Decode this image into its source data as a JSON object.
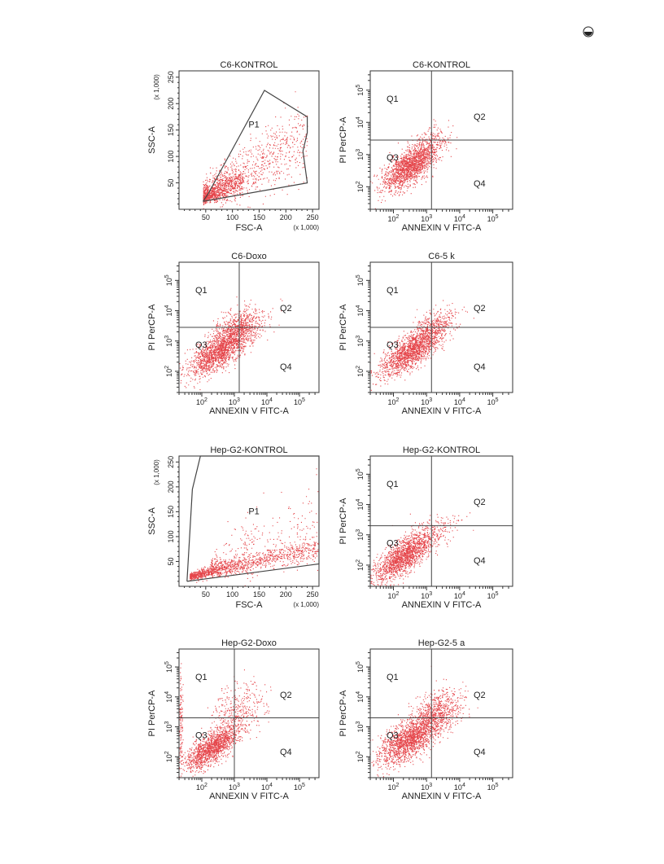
{
  "page": {
    "corner_icon": "circle-half-icon"
  },
  "colors": {
    "events": "#e0262b",
    "gate": "#444444",
    "axis": "#333333",
    "text": "#222222"
  },
  "chart_data": [
    {
      "type": "scatter",
      "kind": "gate",
      "title": "C6-KONTROL",
      "xlabel": "FSC-A",
      "ylabel": "SSC-A",
      "xscale": "linear",
      "yscale": "linear",
      "xlim": [
        0,
        262
      ],
      "ylim": [
        0,
        262
      ],
      "xticks": [
        50,
        100,
        150,
        200,
        250
      ],
      "yticks": [
        50,
        100,
        150,
        200,
        250
      ],
      "xunit": "(x 1,000)",
      "yunit": "(x 1,000)",
      "gate_label": "P1",
      "gate_label_at": [
        130,
        155
      ],
      "gate_polygon": [
        [
          45,
          15
        ],
        [
          55,
          30
        ],
        [
          160,
          225
        ],
        [
          240,
          175
        ],
        [
          240,
          145
        ],
        [
          232,
          110
        ],
        [
          240,
          50
        ],
        [
          45,
          15
        ]
      ],
      "clusters": [
        {
          "n": 900,
          "x": [
            45,
            240
          ],
          "y_from_x": [
            0.55,
            5
          ],
          "ysd": 28
        },
        {
          "n": 700,
          "x": [
            45,
            120
          ],
          "y_from_x": [
            0.45,
            0
          ],
          "ysd": 10
        }
      ]
    },
    {
      "type": "scatter",
      "kind": "quadrant",
      "title": "C6-KONTROL",
      "xlabel": "ANNEXIN V FITC-A",
      "ylabel": "PI PerCP-A",
      "xscale": "log",
      "yscale": "log",
      "xlim": [
        1.3,
        5.6
      ],
      "ylim": [
        1.3,
        5.6
      ],
      "decades": [
        2,
        3,
        4,
        5
      ],
      "quadrant_cut": [
        3.15,
        3.45
      ],
      "quadrants": [
        "Q1",
        "Q2",
        "Q3",
        "Q4"
      ],
      "clusters": [
        {
          "n": 1700,
          "cx": 2.5,
          "cy": 2.65,
          "major": 0.5,
          "minor": 0.22,
          "angle": 40
        },
        {
          "n": 120,
          "cx": 3.1,
          "cy": 3.5,
          "major": 0.35,
          "minor": 0.2,
          "angle": 40
        }
      ]
    },
    {
      "type": "scatter",
      "kind": "quadrant",
      "title": "C6-Doxo",
      "xlabel": "ANNEXIN V FITC-A",
      "ylabel": "PI PerCP-A",
      "xscale": "log",
      "yscale": "log",
      "xlim": [
        1.3,
        5.6
      ],
      "ylim": [
        1.3,
        5.6
      ],
      "decades": [
        2,
        3,
        4,
        5
      ],
      "quadrant_cut": [
        3.15,
        3.45
      ],
      "quadrants": [
        "Q1",
        "Q2",
        "Q3",
        "Q4"
      ],
      "clusters": [
        {
          "n": 1500,
          "cx": 2.5,
          "cy": 2.65,
          "major": 0.55,
          "minor": 0.22,
          "angle": 40
        },
        {
          "n": 700,
          "cx": 3.15,
          "cy": 3.4,
          "major": 0.45,
          "minor": 0.28,
          "angle": 35
        }
      ]
    },
    {
      "type": "scatter",
      "kind": "quadrant",
      "title": "C6-5 k",
      "xlabel": "ANNEXIN V FITC-A",
      "ylabel": "PI PerCP-A",
      "xscale": "log",
      "yscale": "log",
      "xlim": [
        1.3,
        5.6
      ],
      "ylim": [
        1.3,
        5.6
      ],
      "decades": [
        2,
        3,
        4,
        5
      ],
      "quadrant_cut": [
        3.15,
        3.45
      ],
      "quadrants": [
        "Q1",
        "Q2",
        "Q3",
        "Q4"
      ],
      "clusters": [
        {
          "n": 1500,
          "cx": 2.5,
          "cy": 2.65,
          "major": 0.55,
          "minor": 0.22,
          "angle": 40
        },
        {
          "n": 400,
          "cx": 3.2,
          "cy": 3.45,
          "major": 0.4,
          "minor": 0.25,
          "angle": 40
        }
      ]
    },
    {
      "type": "scatter",
      "kind": "gate",
      "title": "Hep-G2-KONTROL",
      "xlabel": "FSC-A",
      "ylabel": "SSC-A",
      "xscale": "linear",
      "yscale": "linear",
      "xlim": [
        0,
        262
      ],
      "ylim": [
        0,
        262
      ],
      "xticks": [
        50,
        100,
        150,
        200,
        250
      ],
      "yticks": [
        50,
        100,
        150,
        200,
        250
      ],
      "xunit": "(x 1,000)",
      "yunit": "(x 1,000)",
      "gate_label": "P1",
      "gate_label_at": [
        130,
        145
      ],
      "gate_polygon": [
        [
          15,
          10
        ],
        [
          25,
          195
        ],
        [
          40,
          262
        ],
        [
          262,
          262
        ],
        [
          262,
          45
        ],
        [
          15,
          10
        ]
      ],
      "clusters": [
        {
          "n": 1300,
          "x": [
            20,
            262
          ],
          "y_from_x": [
            0.25,
            15
          ],
          "ysd": 10
        },
        {
          "n": 250,
          "x": [
            60,
            262
          ],
          "y_from_x": [
            0.45,
            20
          ],
          "ysd": 35
        }
      ]
    },
    {
      "type": "scatter",
      "kind": "quadrant",
      "title": "Hep-G2-KONTROL",
      "xlabel": "ANNEXIN V FITC-A",
      "ylabel": "PI PerCP-A",
      "xscale": "log",
      "yscale": "log",
      "xlim": [
        1.3,
        5.6
      ],
      "ylim": [
        1.3,
        5.6
      ],
      "decades": [
        2,
        3,
        4,
        5
      ],
      "quadrant_cut": [
        3.15,
        3.3
      ],
      "quadrants": [
        "Q1",
        "Q2",
        "Q3",
        "Q4"
      ],
      "clusters": [
        {
          "n": 1600,
          "cx": 2.3,
          "cy": 2.3,
          "major": 0.55,
          "minor": 0.22,
          "angle": 40
        },
        {
          "n": 150,
          "cx": 3.2,
          "cy": 3.1,
          "major": 0.45,
          "minor": 0.25,
          "angle": 35
        }
      ]
    },
    {
      "type": "scatter",
      "kind": "quadrant",
      "title": "Hep-G2-Doxo",
      "xlabel": "ANNEXIN V FITC-A",
      "ylabel": "PI PerCP-A",
      "xscale": "log",
      "yscale": "log",
      "xlim": [
        1.3,
        5.6
      ],
      "ylim": [
        1.3,
        5.6
      ],
      "decades": [
        2,
        3,
        4,
        5
      ],
      "quadrant_cut": [
        3.0,
        3.3
      ],
      "quadrants": [
        "Q1",
        "Q2",
        "Q3",
        "Q4"
      ],
      "clusters": [
        {
          "n": 1400,
          "cx": 2.3,
          "cy": 2.3,
          "major": 0.5,
          "minor": 0.2,
          "angle": 40
        },
        {
          "n": 350,
          "cx": 3.1,
          "cy": 3.6,
          "major": 0.5,
          "minor": 0.35,
          "angle": 60
        },
        {
          "n": 120,
          "cx": 1.35,
          "cy": 3.0,
          "major": 0.9,
          "minor": 0.03,
          "angle": 90
        }
      ]
    },
    {
      "type": "scatter",
      "kind": "quadrant",
      "title": "Hep-G2-5 a",
      "xlabel": "ANNEXIN V FITC-A",
      "ylabel": "PI PerCP-A",
      "xscale": "log",
      "yscale": "log",
      "xlim": [
        1.3,
        5.6
      ],
      "ylim": [
        1.3,
        5.6
      ],
      "decades": [
        2,
        3,
        4,
        5
      ],
      "quadrant_cut": [
        3.15,
        3.3
      ],
      "quadrants": [
        "Q1",
        "Q2",
        "Q3",
        "Q4"
      ],
      "clusters": [
        {
          "n": 1700,
          "cx": 2.5,
          "cy": 2.6,
          "major": 0.6,
          "minor": 0.25,
          "angle": 40
        },
        {
          "n": 600,
          "cx": 3.3,
          "cy": 3.5,
          "major": 0.45,
          "minor": 0.3,
          "angle": 40
        }
      ]
    }
  ]
}
